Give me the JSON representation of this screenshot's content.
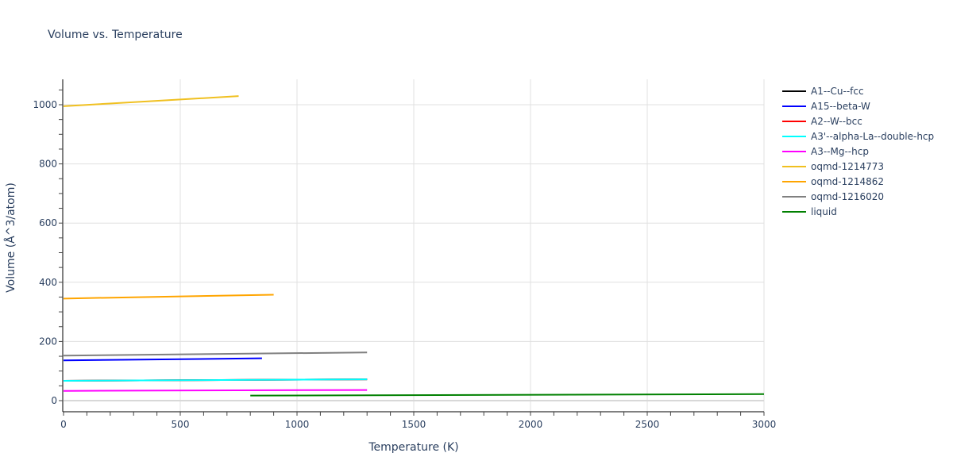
{
  "chart_data": {
    "type": "line",
    "title": "Volume vs. Temperature",
    "xlabel": "Temperature (K)",
    "ylabel": "Volume (Å^3/atom)",
    "xlim": [
      0,
      3000
    ],
    "ylim": [
      -40,
      1085
    ],
    "x_ticks": [
      0,
      500,
      1000,
      1500,
      2000,
      2500,
      3000
    ],
    "y_ticks": [
      0,
      200,
      400,
      600,
      800,
      1000
    ],
    "grid": true,
    "legend_position": "right",
    "series": [
      {
        "name": "A1--Cu--fcc",
        "color": "#000000",
        "x": [
          0,
          1300
        ],
        "y": [
          67,
          72
        ]
      },
      {
        "name": "A15--beta-W",
        "color": "#0000ff",
        "x": [
          0,
          850
        ],
        "y": [
          136,
          143
        ]
      },
      {
        "name": "A2--W--bcc",
        "color": "#ff0000",
        "x": [
          0,
          1300
        ],
        "y": [
          67,
          72
        ]
      },
      {
        "name": "A3'--alpha-La--double-hcp",
        "color": "#00ffff",
        "x": [
          0,
          1300
        ],
        "y": [
          67,
          72
        ]
      },
      {
        "name": "A3--Mg--hcp",
        "color": "#ff00ff",
        "x": [
          0,
          1300
        ],
        "y": [
          33,
          36
        ]
      },
      {
        "name": "oqmd-1214773",
        "color": "#f0c020",
        "x": [
          0,
          750
        ],
        "y": [
          995,
          1029
        ]
      },
      {
        "name": "oqmd-1214862",
        "color": "#ffa500",
        "x": [
          0,
          900
        ],
        "y": [
          345,
          358
        ]
      },
      {
        "name": "oqmd-1216020",
        "color": "#808080",
        "x": [
          0,
          1300
        ],
        "y": [
          152,
          163
        ]
      },
      {
        "name": "liquid",
        "color": "#008000",
        "x": [
          800,
          3000
        ],
        "y": [
          17,
          22
        ]
      }
    ]
  }
}
